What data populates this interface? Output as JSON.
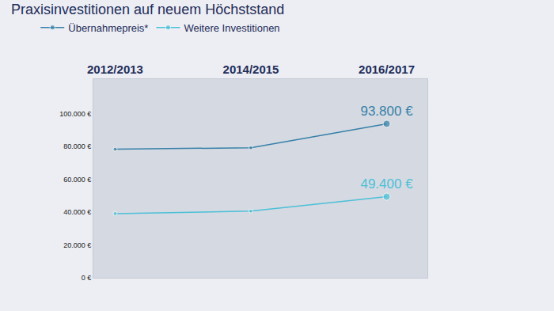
{
  "chart_data": {
    "type": "line",
    "title": "Praxisinvestitionen auf neuem Höchststand",
    "categories": [
      "2012/2013",
      "2014/2015",
      "2016/2017"
    ],
    "series": [
      {
        "name": "Übernahmepreis*",
        "color": "#3781a8",
        "values": [
          78300,
          79200,
          93800
        ],
        "value_labels": [
          null,
          null,
          "93.800 €"
        ]
      },
      {
        "name": "Weitere Investitionen",
        "color": "#4cc0d6",
        "values": [
          39100,
          40600,
          49400
        ],
        "value_labels": [
          null,
          null,
          "49.400 €"
        ]
      }
    ],
    "ylim": [
      0,
      121000
    ],
    "yticks": [
      {
        "value": 0,
        "label": "0 €"
      },
      {
        "value": 20000,
        "label": "20.000 €"
      },
      {
        "value": 40000,
        "label": "40.000 €"
      },
      {
        "value": 60000,
        "label": "60.000 €"
      },
      {
        "value": 80000,
        "label": "80.000 €"
      },
      {
        "value": 100000,
        "label": "100.000 €"
      }
    ],
    "grid": false,
    "legend": "top-left",
    "data_labels": true,
    "marker": "circle"
  }
}
